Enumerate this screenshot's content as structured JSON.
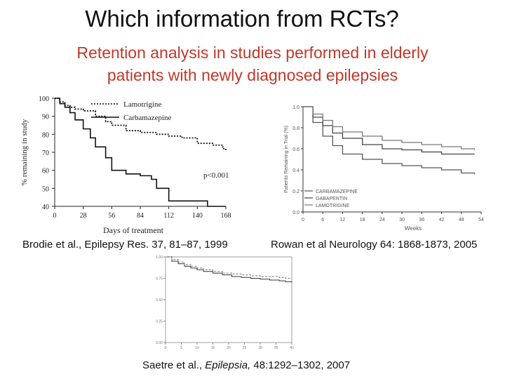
{
  "slide": {
    "title": "Which information from RCTs?",
    "subtitle_line1": "Retention analysis in studies performed in elderly",
    "subtitle_line2": "patients with newly diagnosed epilepsies",
    "citation1": "Brodie et al.,  Epilepsy Res. 37, 81–87, 1999",
    "citation2": "Rowan et al Neurology 64: 1868-1873, 2005",
    "citation3_prefix": "Saetre et al., ",
    "citation3_journal": "Epilepsia,",
    "citation3_suffix": " 48:1292–1302, 2007",
    "colors": {
      "subtitle": "#c0392b",
      "title": "#111111"
    }
  },
  "chart_data": [
    {
      "type": "line",
      "ylabel": "% remaining in study",
      "xlabel": "Days of treatment",
      "ylim": [
        40,
        100
      ],
      "xlim": [
        0,
        168
      ],
      "x_ticks": [
        "0",
        "28",
        "56",
        "84",
        "112",
        "140",
        "168"
      ],
      "y_ticks": [
        "40",
        "50",
        "60",
        "70",
        "80",
        "90",
        "100"
      ],
      "annotation": "p<0.001",
      "series": [
        {
          "name": "Lamotrigine",
          "style": "dotted",
          "x": [
            0,
            5,
            10,
            15,
            20,
            28,
            40,
            50,
            56,
            70,
            84,
            100,
            112,
            125,
            140,
            155,
            165,
            168
          ],
          "y": [
            100,
            98,
            96,
            95,
            94,
            93,
            90,
            87,
            85,
            82,
            81,
            80,
            79,
            78,
            75,
            74,
            72,
            71
          ]
        },
        {
          "name": "Carbamazepine",
          "style": "solid",
          "x": [
            0,
            5,
            10,
            15,
            20,
            28,
            35,
            40,
            50,
            56,
            70,
            84,
            95,
            100,
            112,
            140,
            150,
            168
          ],
          "y": [
            100,
            97,
            95,
            92,
            88,
            83,
            78,
            73,
            67,
            60,
            58,
            57,
            55,
            50,
            43,
            43,
            40,
            40
          ]
        }
      ]
    },
    {
      "type": "line",
      "ylabel": "Patients Remaining in Trial (%)",
      "xlabel": "Weeks",
      "ylim": [
        0,
        1.0
      ],
      "xlim": [
        0,
        54
      ],
      "x_ticks": [
        "0",
        "6",
        "12",
        "18",
        "24",
        "30",
        "36",
        "42",
        "48",
        "54"
      ],
      "y_ticks": [
        "0.0",
        "0.2",
        "0.4",
        "0.6",
        "0.8",
        "1.0"
      ],
      "series": [
        {
          "name": "CARBAMAZEPINE",
          "x": [
            0,
            3,
            6,
            9,
            12,
            18,
            24,
            30,
            36,
            42,
            48,
            52
          ],
          "y": [
            1.0,
            0.85,
            0.72,
            0.63,
            0.55,
            0.5,
            0.46,
            0.44,
            0.42,
            0.4,
            0.37,
            0.36
          ]
        },
        {
          "name": "GABAPENTIN",
          "x": [
            0,
            3,
            6,
            9,
            12,
            18,
            24,
            30,
            36,
            42,
            48,
            52
          ],
          "y": [
            1.0,
            0.9,
            0.82,
            0.75,
            0.7,
            0.64,
            0.6,
            0.59,
            0.57,
            0.55,
            0.55,
            0.55
          ]
        },
        {
          "name": "LAMOTRIGINE",
          "x": [
            0,
            3,
            6,
            9,
            12,
            18,
            24,
            30,
            36,
            42,
            48,
            52
          ],
          "y": [
            1.0,
            0.93,
            0.87,
            0.81,
            0.76,
            0.72,
            0.68,
            0.66,
            0.64,
            0.62,
            0.6,
            0.59
          ]
        }
      ]
    },
    {
      "type": "line",
      "ylim": [
        0,
        1.0
      ],
      "xlim": [
        0,
        40
      ],
      "y_ticks": [
        "0.00",
        "0.25",
        "0.50",
        "0.75",
        "1.00"
      ],
      "x_ticks": [
        "0",
        "5",
        "10",
        "15",
        "20",
        "25",
        "30",
        "35",
        "40"
      ],
      "series": [
        {
          "style": "solid",
          "x": [
            0,
            2,
            4,
            6,
            8,
            10,
            12,
            15,
            18,
            21,
            24,
            27,
            30,
            33,
            36,
            38,
            40
          ],
          "y": [
            1.0,
            0.95,
            0.92,
            0.89,
            0.87,
            0.85,
            0.83,
            0.81,
            0.79,
            0.77,
            0.76,
            0.75,
            0.74,
            0.73,
            0.72,
            0.71,
            0.7
          ]
        },
        {
          "style": "dashed",
          "x": [
            0,
            2,
            4,
            6,
            8,
            10,
            12,
            15,
            18,
            21,
            24,
            27,
            30,
            33,
            36,
            38,
            40
          ],
          "y": [
            1.0,
            0.97,
            0.94,
            0.91,
            0.89,
            0.87,
            0.85,
            0.83,
            0.81,
            0.8,
            0.79,
            0.78,
            0.77,
            0.77,
            0.76,
            0.75,
            0.75
          ]
        }
      ]
    }
  ]
}
